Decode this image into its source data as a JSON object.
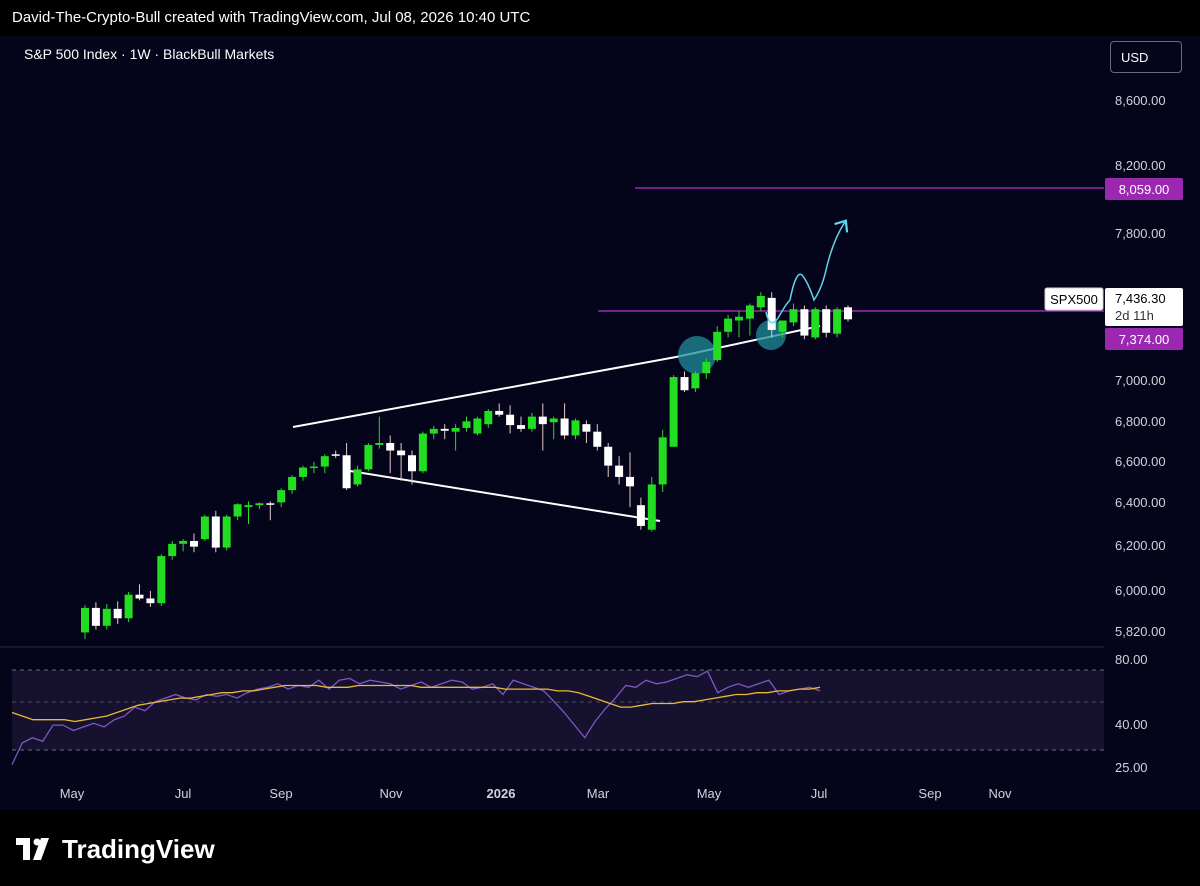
{
  "header": {
    "text": "David-The-Crypto-Bull created with TradingView.com, Jul 08, 2026 10:40 UTC"
  },
  "symbol": {
    "title": "S&P 500 Index · 1W · BlackBull Markets"
  },
  "currency_button": {
    "label": "USD"
  },
  "price_axis": {
    "ticks": [
      "8,600.00",
      "8,200.00",
      "7,800.00",
      "7,000.00",
      "6,800.00",
      "6,600.00",
      "6,400.00",
      "6,200.00",
      "6,000.00",
      "5,820.00"
    ]
  },
  "price_labels": {
    "upper_level": "8,059.00",
    "lower_level": "7,374.00",
    "current_symbol": "SPX500",
    "current_price": "7,436.30",
    "countdown": "2d 11h"
  },
  "rsi_axis": {
    "ticks": [
      "80.00",
      "40.00",
      "25.00"
    ]
  },
  "time_axis": {
    "labels": [
      "May",
      "Jul",
      "Sep",
      "Nov",
      "2026",
      "Mar",
      "May",
      "Jul",
      "Sep",
      "Nov"
    ]
  },
  "footer": {
    "brand": "TradingView"
  },
  "colors": {
    "up": "#22dd22",
    "down": "#ffffff",
    "accent_level": "#9c27b0",
    "rsi_line": "#7e57c2",
    "rsi_ma": "#e8b83a",
    "projection": "#5fd6e8"
  },
  "chart_data": [
    {
      "type": "candlestick",
      "title": "S&P 500 Index · 1W · BlackBull Markets",
      "ylim": [
        5760,
        8700
      ],
      "horizontal_levels": [
        8059,
        7374
      ],
      "last_price": 7436.3,
      "candles": [
        {
          "o": 5775,
          "h": 5920,
          "l": 5740,
          "c": 5905
        },
        {
          "o": 5905,
          "h": 5935,
          "l": 5790,
          "c": 5810
        },
        {
          "o": 5810,
          "h": 5925,
          "l": 5790,
          "c": 5900
        },
        {
          "o": 5900,
          "h": 5940,
          "l": 5820,
          "c": 5850
        },
        {
          "o": 5850,
          "h": 5990,
          "l": 5830,
          "c": 5975
        },
        {
          "o": 5975,
          "h": 6030,
          "l": 5945,
          "c": 5955
        },
        {
          "o": 5955,
          "h": 5995,
          "l": 5910,
          "c": 5930
        },
        {
          "o": 5930,
          "h": 6190,
          "l": 5915,
          "c": 6180
        },
        {
          "o": 6180,
          "h": 6260,
          "l": 6160,
          "c": 6245
        },
        {
          "o": 6245,
          "h": 6270,
          "l": 6205,
          "c": 6260
        },
        {
          "o": 6260,
          "h": 6300,
          "l": 6200,
          "c": 6230
        },
        {
          "o": 6270,
          "h": 6400,
          "l": 6260,
          "c": 6390
        },
        {
          "o": 6390,
          "h": 6420,
          "l": 6200,
          "c": 6225
        },
        {
          "o": 6225,
          "h": 6400,
          "l": 6210,
          "c": 6390
        },
        {
          "o": 6390,
          "h": 6460,
          "l": 6370,
          "c": 6455
        },
        {
          "o": 6440,
          "h": 6470,
          "l": 6350,
          "c": 6450
        },
        {
          "o": 6450,
          "h": 6465,
          "l": 6430,
          "c": 6460
        },
        {
          "o": 6460,
          "h": 6470,
          "l": 6370,
          "c": 6455
        },
        {
          "o": 6465,
          "h": 6540,
          "l": 6440,
          "c": 6530
        },
        {
          "o": 6530,
          "h": 6610,
          "l": 6510,
          "c": 6600
        },
        {
          "o": 6600,
          "h": 6660,
          "l": 6580,
          "c": 6650
        },
        {
          "o": 6650,
          "h": 6680,
          "l": 6620,
          "c": 6655
        },
        {
          "o": 6655,
          "h": 6720,
          "l": 6620,
          "c": 6710
        },
        {
          "o": 6720,
          "h": 6740,
          "l": 6700,
          "c": 6715
        },
        {
          "o": 6715,
          "h": 6780,
          "l": 6530,
          "c": 6540
        },
        {
          "o": 6560,
          "h": 6660,
          "l": 6550,
          "c": 6640
        },
        {
          "o": 6640,
          "h": 6780,
          "l": 6630,
          "c": 6770
        },
        {
          "o": 6770,
          "h": 6920,
          "l": 6750,
          "c": 6780
        },
        {
          "o": 6780,
          "h": 6820,
          "l": 6620,
          "c": 6740
        },
        {
          "o": 6740,
          "h": 6780,
          "l": 6580,
          "c": 6715
        },
        {
          "o": 6715,
          "h": 6740,
          "l": 6560,
          "c": 6630
        },
        {
          "o": 6630,
          "h": 6840,
          "l": 6620,
          "c": 6830
        },
        {
          "o": 6830,
          "h": 6870,
          "l": 6800,
          "c": 6855
        },
        {
          "o": 6855,
          "h": 6880,
          "l": 6800,
          "c": 6845
        },
        {
          "o": 6840,
          "h": 6880,
          "l": 6740,
          "c": 6860
        },
        {
          "o": 6860,
          "h": 6920,
          "l": 6840,
          "c": 6895
        },
        {
          "o": 6830,
          "h": 6920,
          "l": 6820,
          "c": 6910
        },
        {
          "o": 6880,
          "h": 6960,
          "l": 6860,
          "c": 6950
        },
        {
          "o": 6950,
          "h": 6990,
          "l": 6920,
          "c": 6930
        },
        {
          "o": 6930,
          "h": 6980,
          "l": 6830,
          "c": 6875
        },
        {
          "o": 6875,
          "h": 6920,
          "l": 6840,
          "c": 6855
        },
        {
          "o": 6855,
          "h": 6940,
          "l": 6840,
          "c": 6920
        },
        {
          "o": 6920,
          "h": 6990,
          "l": 6740,
          "c": 6880
        },
        {
          "o": 6890,
          "h": 6920,
          "l": 6800,
          "c": 6910
        },
        {
          "o": 6910,
          "h": 6990,
          "l": 6800,
          "c": 6820
        },
        {
          "o": 6820,
          "h": 6910,
          "l": 6800,
          "c": 6900
        },
        {
          "o": 6880,
          "h": 6900,
          "l": 6780,
          "c": 6840
        },
        {
          "o": 6840,
          "h": 6880,
          "l": 6740,
          "c": 6760
        },
        {
          "o": 6760,
          "h": 6780,
          "l": 6600,
          "c": 6660
        },
        {
          "o": 6660,
          "h": 6710,
          "l": 6560,
          "c": 6600
        },
        {
          "o": 6600,
          "h": 6730,
          "l": 6440,
          "c": 6550
        },
        {
          "o": 6450,
          "h": 6490,
          "l": 6320,
          "c": 6340
        },
        {
          "o": 6320,
          "h": 6600,
          "l": 6310,
          "c": 6560
        },
        {
          "o": 6560,
          "h": 6850,
          "l": 6520,
          "c": 6810
        },
        {
          "o": 6760,
          "h": 7140,
          "l": 6760,
          "c": 7130
        },
        {
          "o": 7130,
          "h": 7160,
          "l": 7050,
          "c": 7060
        },
        {
          "o": 7070,
          "h": 7160,
          "l": 7050,
          "c": 7150
        },
        {
          "o": 7150,
          "h": 7230,
          "l": 7120,
          "c": 7210
        },
        {
          "o": 7220,
          "h": 7400,
          "l": 7210,
          "c": 7370
        },
        {
          "o": 7370,
          "h": 7460,
          "l": 7340,
          "c": 7440
        },
        {
          "o": 7430,
          "h": 7480,
          "l": 7340,
          "c": 7450
        },
        {
          "o": 7440,
          "h": 7520,
          "l": 7350,
          "c": 7510
        },
        {
          "o": 7500,
          "h": 7580,
          "l": 7480,
          "c": 7560
        },
        {
          "o": 7550,
          "h": 7580,
          "l": 7340,
          "c": 7380
        },
        {
          "o": 7370,
          "h": 7430,
          "l": 7340,
          "c": 7430
        },
        {
          "o": 7420,
          "h": 7520,
          "l": 7400,
          "c": 7490
        },
        {
          "o": 7490,
          "h": 7510,
          "l": 7330,
          "c": 7350
        },
        {
          "o": 7340,
          "h": 7500,
          "l": 7330,
          "c": 7490
        },
        {
          "o": 7490,
          "h": 7510,
          "l": 7340,
          "c": 7365
        },
        {
          "o": 7360,
          "h": 7500,
          "l": 7340,
          "c": 7490
        },
        {
          "o": 7500,
          "h": 7510,
          "l": 7425,
          "c": 7436.3
        }
      ],
      "time_labels": [
        "May",
        "Jul",
        "Sep",
        "Nov",
        "2026",
        "Mar",
        "May",
        "Jul",
        "Sep",
        "Nov"
      ]
    },
    {
      "type": "line",
      "title": "RSI",
      "ylim": [
        20,
        84
      ],
      "bands": [
        70,
        30
      ],
      "series": [
        {
          "values": [
            23,
            35,
            38,
            36,
            45,
            45,
            42,
            44,
            46,
            44,
            48,
            50,
            55,
            53,
            58,
            60,
            62,
            60,
            59,
            62,
            61,
            62,
            60,
            63,
            65,
            66,
            68,
            65,
            67,
            66,
            70,
            65,
            70,
            71,
            68,
            70,
            69,
            68,
            65,
            67,
            69,
            66,
            68,
            70,
            69,
            65,
            66,
            68,
            62,
            70,
            68,
            66,
            64,
            58,
            52,
            45,
            38,
            47,
            54,
            60,
            67,
            66,
            70,
            68,
            69,
            71,
            73,
            72,
            75,
            63,
            66,
            68,
            66,
            68,
            70,
            62,
            64,
            65,
            66,
            64
          ]
        },
        {
          "values": [
            52,
            50,
            48,
            48,
            48,
            48,
            47,
            48,
            49,
            50,
            52,
            54,
            56,
            57,
            58,
            59,
            60,
            60,
            61,
            62,
            63,
            63,
            64,
            64,
            65,
            66,
            67,
            67,
            67,
            67,
            66,
            66,
            66,
            67,
            67,
            67,
            67,
            67,
            67,
            66,
            66,
            66,
            66,
            66,
            66,
            66,
            66,
            65,
            65,
            65,
            65,
            65,
            64,
            64,
            63,
            61,
            59,
            57,
            55,
            55,
            56,
            57,
            57,
            57,
            58,
            58,
            59,
            60,
            61,
            62,
            62,
            63,
            63,
            64,
            64,
            65,
            65,
            66
          ]
        }
      ]
    }
  ]
}
